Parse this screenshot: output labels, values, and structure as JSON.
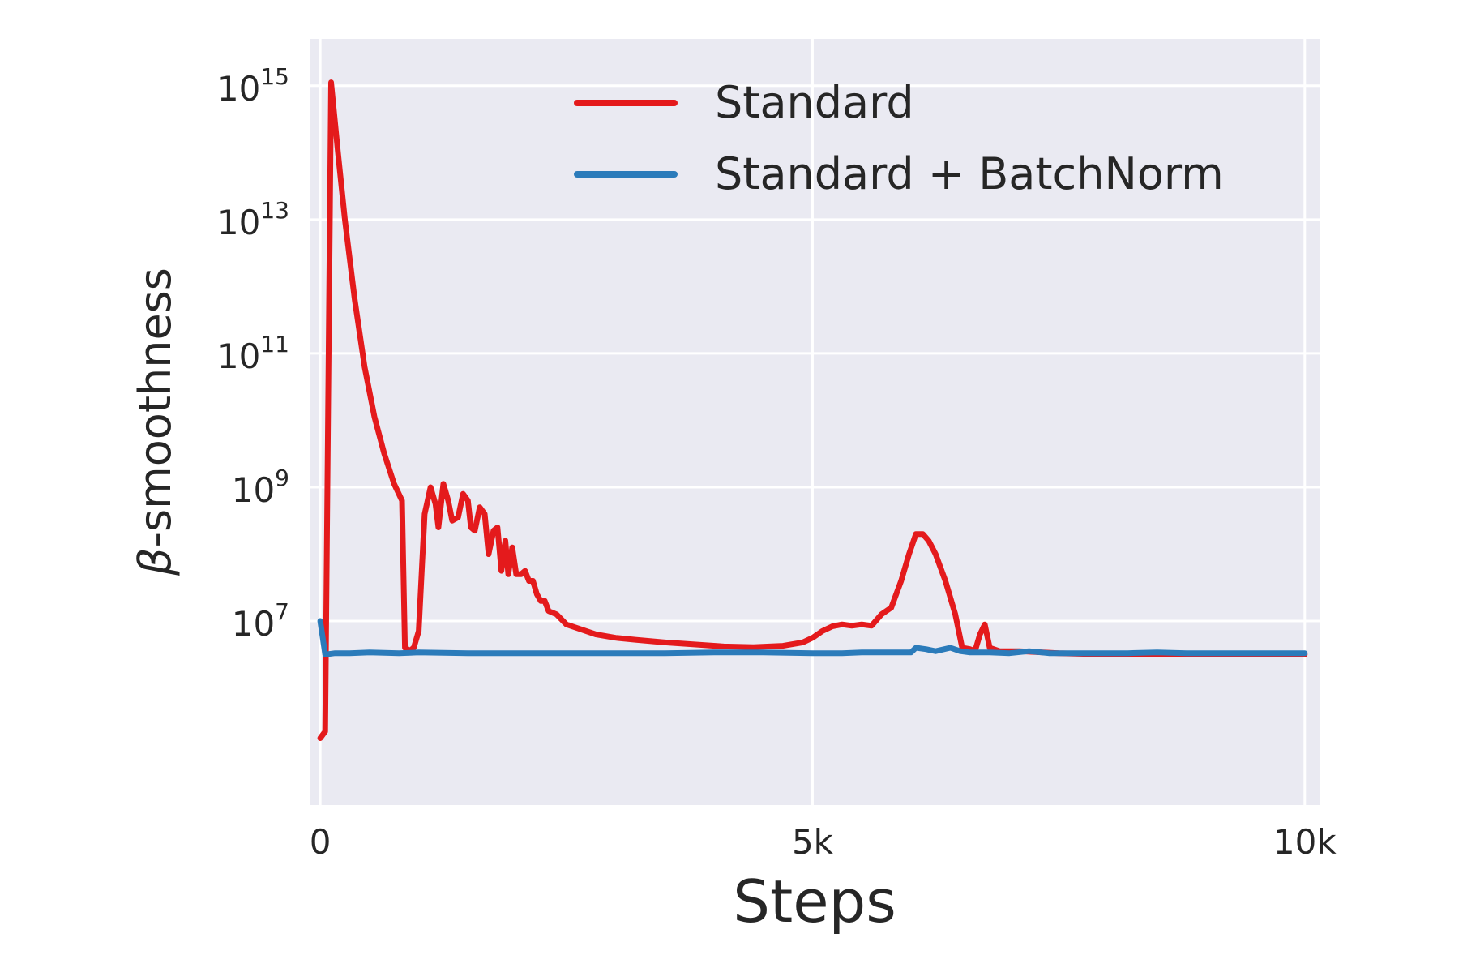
{
  "chart_data": {
    "type": "line",
    "title": "",
    "xlabel": "Steps",
    "ylabel": "β-smoothness",
    "ylabel_symbol": "β",
    "ylabel_rest": "-smoothness",
    "xlim": [
      -100,
      10150
    ],
    "ylim_log10": [
      4.25,
      15.7
    ],
    "y_scale": "log",
    "grid": true,
    "legend_position": "top-right",
    "background_color": "#eaeaf2",
    "x_ticks": [
      {
        "value": 0,
        "label": "0"
      },
      {
        "value": 5000,
        "label": "5k"
      },
      {
        "value": 10000,
        "label": "10k"
      }
    ],
    "y_ticks": [
      {
        "exponent": 15,
        "base": "10",
        "sup": "15"
      },
      {
        "exponent": 13,
        "base": "10",
        "sup": "13"
      },
      {
        "exponent": 11,
        "base": "10",
        "sup": "11"
      },
      {
        "exponent": 9,
        "base": "10",
        "sup": "9"
      },
      {
        "exponent": 7,
        "base": "10",
        "sup": "7"
      }
    ],
    "series": [
      {
        "name": "Standard",
        "color": "#e41a1c",
        "y_unit": "log10",
        "points": [
          [
            0,
            5.25
          ],
          [
            50,
            5.35
          ],
          [
            110,
            15.05
          ],
          [
            180,
            14.0
          ],
          [
            250,
            13.0
          ],
          [
            350,
            11.8
          ],
          [
            450,
            10.8
          ],
          [
            550,
            10.05
          ],
          [
            650,
            9.5
          ],
          [
            750,
            9.05
          ],
          [
            830,
            8.8
          ],
          [
            860,
            6.6
          ],
          [
            900,
            6.55
          ],
          [
            950,
            6.6
          ],
          [
            1000,
            6.85
          ],
          [
            1060,
            8.6
          ],
          [
            1120,
            9.0
          ],
          [
            1170,
            8.75
          ],
          [
            1200,
            8.4
          ],
          [
            1250,
            9.05
          ],
          [
            1300,
            8.8
          ],
          [
            1340,
            8.5
          ],
          [
            1400,
            8.55
          ],
          [
            1450,
            8.9
          ],
          [
            1500,
            8.8
          ],
          [
            1530,
            8.4
          ],
          [
            1570,
            8.35
          ],
          [
            1620,
            8.7
          ],
          [
            1670,
            8.6
          ],
          [
            1710,
            8.0
          ],
          [
            1760,
            8.35
          ],
          [
            1800,
            8.4
          ],
          [
            1840,
            7.75
          ],
          [
            1880,
            8.2
          ],
          [
            1910,
            7.7
          ],
          [
            1950,
            8.1
          ],
          [
            1990,
            7.7
          ],
          [
            2040,
            7.7
          ],
          [
            2080,
            7.75
          ],
          [
            2120,
            7.6
          ],
          [
            2160,
            7.6
          ],
          [
            2200,
            7.4
          ],
          [
            2240,
            7.3
          ],
          [
            2280,
            7.3
          ],
          [
            2320,
            7.15
          ],
          [
            2400,
            7.1
          ],
          [
            2500,
            6.95
          ],
          [
            2600,
            6.9
          ],
          [
            2800,
            6.8
          ],
          [
            3000,
            6.75
          ],
          [
            3200,
            6.72
          ],
          [
            3500,
            6.68
          ],
          [
            3800,
            6.65
          ],
          [
            4100,
            6.62
          ],
          [
            4400,
            6.61
          ],
          [
            4700,
            6.63
          ],
          [
            4900,
            6.68
          ],
          [
            5000,
            6.75
          ],
          [
            5100,
            6.85
          ],
          [
            5200,
            6.92
          ],
          [
            5300,
            6.95
          ],
          [
            5400,
            6.93
          ],
          [
            5500,
            6.95
          ],
          [
            5600,
            6.93
          ],
          [
            5700,
            7.1
          ],
          [
            5800,
            7.2
          ],
          [
            5900,
            7.6
          ],
          [
            5980,
            8.0
          ],
          [
            6050,
            8.3
          ],
          [
            6120,
            8.3
          ],
          [
            6180,
            8.2
          ],
          [
            6250,
            8.0
          ],
          [
            6350,
            7.6
          ],
          [
            6450,
            7.1
          ],
          [
            6520,
            6.6
          ],
          [
            6600,
            6.58
          ],
          [
            6650,
            6.55
          ],
          [
            6700,
            6.8
          ],
          [
            6750,
            6.95
          ],
          [
            6800,
            6.6
          ],
          [
            6900,
            6.55
          ],
          [
            7100,
            6.55
          ],
          [
            7500,
            6.52
          ],
          [
            8000,
            6.5
          ],
          [
            8500,
            6.5
          ],
          [
            9000,
            6.5
          ],
          [
            9500,
            6.5
          ],
          [
            10000,
            6.5
          ]
        ]
      },
      {
        "name": "Standard + BatchNorm",
        "color": "#2b7bba",
        "y_unit": "log10",
        "points": [
          [
            0,
            7.0
          ],
          [
            50,
            6.5
          ],
          [
            150,
            6.52
          ],
          [
            300,
            6.52
          ],
          [
            500,
            6.53
          ],
          [
            800,
            6.52
          ],
          [
            1000,
            6.53
          ],
          [
            1500,
            6.52
          ],
          [
            2000,
            6.52
          ],
          [
            2500,
            6.52
          ],
          [
            3000,
            6.52
          ],
          [
            3500,
            6.52
          ],
          [
            4000,
            6.53
          ],
          [
            4500,
            6.53
          ],
          [
            5000,
            6.52
          ],
          [
            5300,
            6.52
          ],
          [
            5500,
            6.53
          ],
          [
            5800,
            6.53
          ],
          [
            6000,
            6.53
          ],
          [
            6050,
            6.6
          ],
          [
            6150,
            6.58
          ],
          [
            6250,
            6.55
          ],
          [
            6400,
            6.6
          ],
          [
            6500,
            6.55
          ],
          [
            6600,
            6.53
          ],
          [
            6800,
            6.53
          ],
          [
            7000,
            6.52
          ],
          [
            7200,
            6.55
          ],
          [
            7400,
            6.52
          ],
          [
            7800,
            6.52
          ],
          [
            8200,
            6.52
          ],
          [
            8500,
            6.53
          ],
          [
            8800,
            6.52
          ],
          [
            9200,
            6.52
          ],
          [
            9600,
            6.52
          ],
          [
            10000,
            6.52
          ]
        ]
      }
    ]
  }
}
